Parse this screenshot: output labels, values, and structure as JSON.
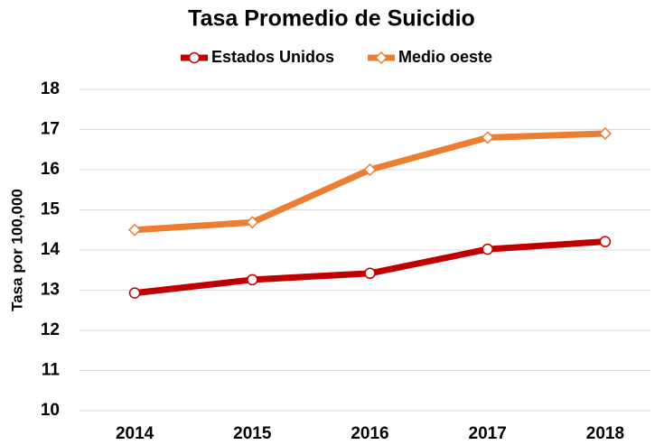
{
  "chart_data": {
    "type": "line",
    "title": "Tasa Promedio de Suicidio",
    "y_label": "Tasa por 100,000",
    "categories": [
      "2014",
      "2015",
      "2016",
      "2017",
      "2018"
    ],
    "series": [
      {
        "name": "Estados Unidos",
        "color": "#c00000",
        "marker": "circle",
        "values": [
          12.93,
          13.26,
          13.42,
          14.02,
          14.21
        ]
      },
      {
        "name": "Medio oeste",
        "color": "#ed7d31",
        "marker": "diamond",
        "values": [
          14.5,
          14.69,
          16.0,
          16.8,
          16.9
        ]
      }
    ],
    "ylim": [
      10,
      18
    ],
    "yticks": [
      10,
      11,
      12,
      13,
      14,
      15,
      16,
      17,
      18
    ],
    "grid": true,
    "legend": "top"
  }
}
